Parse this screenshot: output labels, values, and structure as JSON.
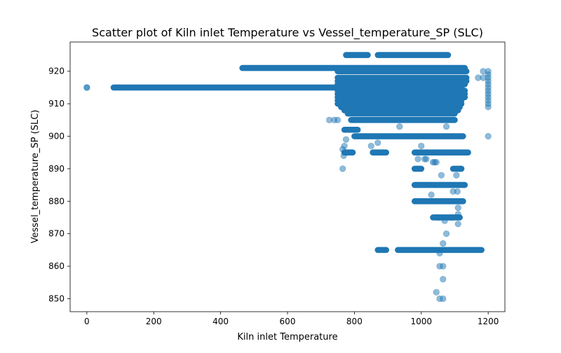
{
  "chart_data": {
    "type": "scatter",
    "title": "Scatter plot of Kiln inlet Temperature vs Vessel_temperature_SP (SLC)",
    "xlabel": "Kiln inlet Temperature",
    "ylabel": "Vessel_temperature_SP (SLC)",
    "xlim": [
      -50,
      1250
    ],
    "ylim": [
      846,
      929
    ],
    "xticks": [
      0,
      200,
      400,
      600,
      800,
      1000,
      1200
    ],
    "yticks": [
      850,
      860,
      870,
      880,
      890,
      900,
      910,
      920
    ],
    "marker_color": "#1f77b4",
    "marker_alpha": 0.5,
    "grid": false,
    "bands": [
      {
        "y": 915,
        "x_start": 80,
        "x_end": 1120
      },
      {
        "y": 921,
        "x_start": 465,
        "x_end": 1130
      },
      {
        "y": 925,
        "x_start": 775,
        "x_end": 840
      },
      {
        "y": 925,
        "x_start": 870,
        "x_end": 1080
      },
      {
        "y": 920,
        "x_start": 750,
        "x_end": 1135
      },
      {
        "y": 918,
        "x_start": 750,
        "x_end": 1135
      },
      {
        "y": 917,
        "x_start": 750,
        "x_end": 1135
      },
      {
        "y": 916,
        "x_start": 750,
        "x_end": 1130
      },
      {
        "y": 914,
        "x_start": 750,
        "x_end": 1130
      },
      {
        "y": 913,
        "x_start": 750,
        "x_end": 1130
      },
      {
        "y": 912,
        "x_start": 750,
        "x_end": 1130
      },
      {
        "y": 911,
        "x_start": 750,
        "x_end": 1120
      },
      {
        "y": 910,
        "x_start": 750,
        "x_end": 1120
      },
      {
        "y": 909,
        "x_start": 760,
        "x_end": 1115
      },
      {
        "y": 908,
        "x_start": 770,
        "x_end": 1110
      },
      {
        "y": 907,
        "x_start": 780,
        "x_end": 1100
      },
      {
        "y": 905,
        "x_start": 790,
        "x_end": 1100
      },
      {
        "y": 902,
        "x_start": 770,
        "x_end": 810
      },
      {
        "y": 900,
        "x_start": 800,
        "x_end": 1125
      },
      {
        "y": 895,
        "x_start": 770,
        "x_end": 795
      },
      {
        "y": 895,
        "x_start": 855,
        "x_end": 895
      },
      {
        "y": 895,
        "x_start": 980,
        "x_end": 1140
      },
      {
        "y": 890,
        "x_start": 980,
        "x_end": 1000
      },
      {
        "y": 890,
        "x_start": 1095,
        "x_end": 1120
      },
      {
        "y": 885,
        "x_start": 980,
        "x_end": 1130
      },
      {
        "y": 880,
        "x_start": 980,
        "x_end": 1125
      },
      {
        "y": 875,
        "x_start": 1035,
        "x_end": 1115
      },
      {
        "y": 865,
        "x_start": 870,
        "x_end": 895
      },
      {
        "y": 865,
        "x_start": 930,
        "x_end": 1180
      }
    ],
    "points": [
      [
        0,
        915
      ],
      [
        0,
        915
      ],
      [
        1200,
        920
      ],
      [
        1200,
        919
      ],
      [
        1200,
        918
      ],
      [
        1200,
        917
      ],
      [
        1200,
        916
      ],
      [
        1200,
        915
      ],
      [
        1200,
        914
      ],
      [
        1200,
        913
      ],
      [
        1200,
        912
      ],
      [
        1200,
        911
      ],
      [
        1200,
        910
      ],
      [
        1200,
        909
      ],
      [
        1200,
        900
      ],
      [
        1185,
        920
      ],
      [
        1170,
        918
      ],
      [
        1185,
        918
      ],
      [
        725,
        905
      ],
      [
        740,
        905
      ],
      [
        750,
        905
      ],
      [
        765,
        896
      ],
      [
        770,
        897
      ],
      [
        775,
        899
      ],
      [
        768,
        894
      ],
      [
        765,
        890
      ],
      [
        850,
        897
      ],
      [
        870,
        898
      ],
      [
        935,
        903
      ],
      [
        1000,
        897
      ],
      [
        1075,
        903
      ],
      [
        990,
        893
      ],
      [
        1010,
        893
      ],
      [
        1015,
        893
      ],
      [
        1035,
        892
      ],
      [
        1040,
        892
      ],
      [
        1045,
        892
      ],
      [
        1060,
        888
      ],
      [
        1105,
        888
      ],
      [
        1095,
        883
      ],
      [
        1108,
        883
      ],
      [
        1030,
        882
      ],
      [
        1110,
        878
      ],
      [
        1050,
        875
      ],
      [
        1070,
        874
      ],
      [
        1110,
        876
      ],
      [
        1110,
        873
      ],
      [
        1090,
        875
      ],
      [
        1075,
        870
      ],
      [
        1065,
        867
      ],
      [
        1055,
        864
      ],
      [
        1055,
        860
      ],
      [
        1065,
        860
      ],
      [
        1065,
        856
      ],
      [
        1045,
        852
      ],
      [
        1055,
        850
      ],
      [
        1065,
        850
      ]
    ]
  }
}
